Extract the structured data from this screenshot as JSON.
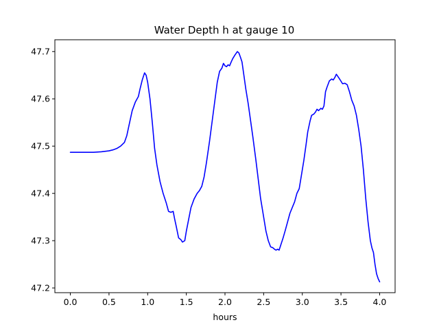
{
  "chart_data": {
    "type": "line",
    "title": "Water Depth h at gauge 10",
    "xlabel": "hours",
    "ylabel": "",
    "xlim": [
      -0.2,
      4.2
    ],
    "ylim": [
      47.19,
      47.725
    ],
    "xticks": [
      0.0,
      0.5,
      1.0,
      1.5,
      2.0,
      2.5,
      3.0,
      3.5,
      4.0
    ],
    "xtick_labels": [
      "0.0",
      "0.5",
      "1.0",
      "1.5",
      "2.0",
      "2.5",
      "3.0",
      "3.5",
      "4.0"
    ],
    "yticks": [
      47.2,
      47.3,
      47.4,
      47.5,
      47.6,
      47.7
    ],
    "ytick_labels": [
      "47.2",
      "47.3",
      "47.4",
      "47.5",
      "47.6",
      "47.7"
    ],
    "grid": false,
    "series": [
      {
        "color": "#0000ff",
        "x": [
          0.0,
          0.1,
          0.2,
          0.3,
          0.4,
          0.5,
          0.55,
          0.6,
          0.65,
          0.7,
          0.73,
          0.76,
          0.8,
          0.84,
          0.88,
          0.9,
          0.93,
          0.96,
          0.98,
          1.0,
          1.03,
          1.06,
          1.09,
          1.12,
          1.16,
          1.2,
          1.24,
          1.27,
          1.3,
          1.33,
          1.35,
          1.37,
          1.4,
          1.43,
          1.45,
          1.48,
          1.5,
          1.53,
          1.56,
          1.6,
          1.64,
          1.67,
          1.7,
          1.73,
          1.76,
          1.8,
          1.84,
          1.88,
          1.9,
          1.93,
          1.96,
          1.98,
          2.0,
          2.02,
          2.04,
          2.06,
          2.08,
          2.1,
          2.13,
          2.16,
          2.18,
          2.2,
          2.22,
          2.24,
          2.27,
          2.3,
          2.33,
          2.36,
          2.4,
          2.43,
          2.46,
          2.5,
          2.53,
          2.56,
          2.59,
          2.62,
          2.64,
          2.66,
          2.68,
          2.7,
          2.72,
          2.75,
          2.78,
          2.81,
          2.84,
          2.87,
          2.9,
          2.93,
          2.96,
          2.99,
          3.02,
          3.05,
          3.07,
          3.1,
          3.12,
          3.15,
          3.17,
          3.19,
          3.21,
          3.24,
          3.26,
          3.28,
          3.3,
          3.32,
          3.35,
          3.38,
          3.4,
          3.42,
          3.44,
          3.47,
          3.49,
          3.52,
          3.55,
          3.58,
          3.61,
          3.64,
          3.67,
          3.7,
          3.73,
          3.76,
          3.79,
          3.82,
          3.85,
          3.88,
          3.9,
          3.92,
          3.94,
          3.96,
          3.98,
          4.0
        ],
        "y": [
          47.487,
          47.487,
          47.487,
          47.487,
          47.488,
          47.49,
          47.492,
          47.495,
          47.5,
          47.508,
          47.522,
          47.545,
          47.575,
          47.593,
          47.605,
          47.62,
          47.64,
          47.655,
          47.65,
          47.635,
          47.6,
          47.55,
          47.495,
          47.46,
          47.425,
          47.4,
          47.38,
          47.362,
          47.36,
          47.362,
          47.345,
          47.33,
          47.306,
          47.302,
          47.297,
          47.3,
          47.32,
          47.345,
          47.37,
          47.388,
          47.4,
          47.406,
          47.415,
          47.435,
          47.465,
          47.51,
          47.56,
          47.61,
          47.635,
          47.658,
          47.665,
          47.675,
          47.67,
          47.668,
          47.672,
          47.67,
          47.678,
          47.685,
          47.693,
          47.7,
          47.697,
          47.688,
          47.678,
          47.655,
          47.62,
          47.59,
          47.555,
          47.52,
          47.47,
          47.43,
          47.39,
          47.35,
          47.32,
          47.3,
          47.287,
          47.285,
          47.282,
          47.28,
          47.282,
          47.28,
          47.29,
          47.305,
          47.322,
          47.34,
          47.358,
          47.37,
          47.382,
          47.4,
          47.41,
          47.44,
          47.47,
          47.505,
          47.53,
          47.553,
          47.565,
          47.568,
          47.572,
          47.578,
          47.575,
          47.58,
          47.578,
          47.585,
          47.615,
          47.625,
          47.638,
          47.642,
          47.64,
          47.645,
          47.652,
          47.645,
          47.64,
          47.632,
          47.633,
          47.63,
          47.615,
          47.597,
          47.585,
          47.565,
          47.535,
          47.5,
          47.45,
          47.39,
          47.34,
          47.3,
          47.285,
          47.275,
          47.25,
          47.23,
          47.22,
          47.213
        ]
      }
    ]
  }
}
